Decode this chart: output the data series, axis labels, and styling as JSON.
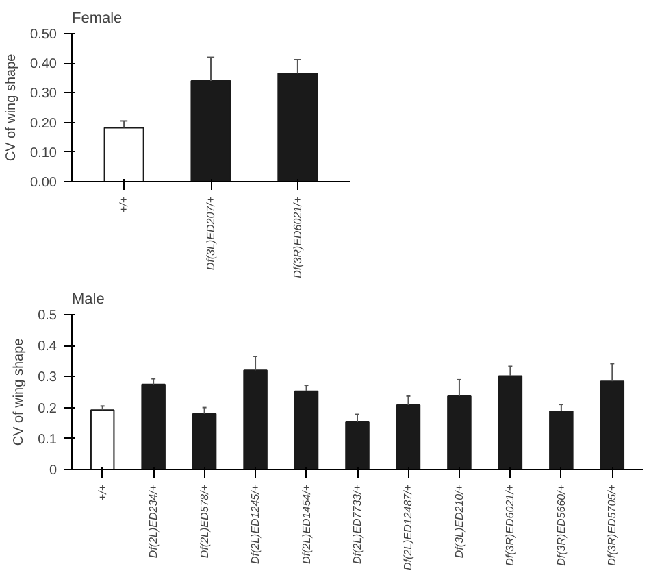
{
  "chart_data": [
    {
      "type": "bar",
      "title": "Female",
      "ylabel": "CV of wing shape",
      "categories": [
        "+/+",
        "Df(3L)ED207/+",
        "Df(3R)ED6021/+"
      ],
      "values": [
        0.182,
        0.34,
        0.365
      ],
      "errors": [
        [
          0.182,
          0.205
        ],
        [
          0.34,
          0.42
        ],
        [
          0.365,
          0.412
        ]
      ],
      "colors": [
        "#ffffff",
        "#1a1a1a",
        "#1a1a1a"
      ],
      "ylim": [
        0,
        0.5
      ],
      "yticks": [
        {
          "value": 0,
          "label": "0.00"
        },
        {
          "value": 0.1,
          "label": "0.10"
        },
        {
          "value": 0.2,
          "label": "0.20"
        },
        {
          "value": 0.3,
          "label": "0.30"
        },
        {
          "value": 0.4,
          "label": "0.40"
        },
        {
          "value": 0.5,
          "label": "0.50"
        }
      ],
      "grid": false
    },
    {
      "type": "bar",
      "title": "Male",
      "ylabel": "CV of wing shape",
      "categories": [
        "+/+",
        "Df(2L)ED234/+",
        "Df(2L)ED578/+",
        "Df(2L)ED1245/+",
        "Df(2L)ED1454/+",
        "Df(2L)ED7733/+",
        "Df(2L)ED12487/+",
        "Df(3L)ED210/+",
        "Df(3R)ED6021/+",
        "Df(3R)ED5660/+",
        "Df(3R)ED5705/+"
      ],
      "values": [
        0.192,
        0.275,
        0.18,
        0.32,
        0.253,
        0.155,
        0.208,
        0.237,
        0.302,
        0.188,
        0.285
      ],
      "errors": [
        [
          0.192,
          0.205
        ],
        [
          0.275,
          0.293
        ],
        [
          0.18,
          0.2
        ],
        [
          0.32,
          0.365
        ],
        [
          0.253,
          0.272
        ],
        [
          0.155,
          0.178
        ],
        [
          0.208,
          0.237
        ],
        [
          0.237,
          0.29
        ],
        [
          0.302,
          0.333
        ],
        [
          0.188,
          0.21
        ],
        [
          0.285,
          0.342
        ]
      ],
      "colors": [
        "#ffffff",
        "#1a1a1a",
        "#1a1a1a",
        "#1a1a1a",
        "#1a1a1a",
        "#1a1a1a",
        "#1a1a1a",
        "#1a1a1a",
        "#1a1a1a",
        "#1a1a1a",
        "#1a1a1a"
      ],
      "ylim": [
        0,
        0.5
      ],
      "yticks": [
        0,
        0.1,
        0.2,
        0.3,
        0.4,
        0.5
      ],
      "grid": false
    }
  ]
}
